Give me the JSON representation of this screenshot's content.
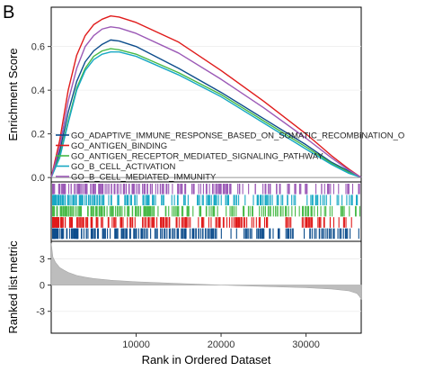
{
  "panel_label": "B",
  "colors": {
    "GO_ADAPTIVE_IMMUNE_RESPONSE_BASED_ON_SOMATIC_RECOMBINATION_O": "#0d4d8c",
    "GO_ANTIGEN_BINDING": "#e01b1b",
    "GO_ANTIGEN_RECEPTOR_MEDIATED_SIGNALING_PATHWAY": "#46b946",
    "GO_B_CELL_ACTIVATION": "#18a8c4",
    "GO_B_CELL_MEDIATED_IMMUNITY": "#9b59b6",
    "ranked_fill": "#bdbdbd"
  },
  "chart_data": [
    {
      "type": "line",
      "ylabel": "Enrichment Score",
      "xlim": [
        0,
        36500
      ],
      "ylim": [
        -0.02,
        0.78
      ],
      "yticks": [
        0.0,
        0.2,
        0.4,
        0.6
      ],
      "ytick_labels": [
        "0.0",
        "0.2",
        "0.4",
        "0.6"
      ],
      "legend_position": "bottom-left",
      "series": [
        {
          "name": "GO_ADAPTIVE_IMMUNE_RESPONSE_BASED_ON_SOMATIC_RECOMBINATION_O",
          "x": [
            0,
            1000,
            2000,
            3000,
            4000,
            5000,
            6000,
            7000,
            8000,
            10000,
            15000,
            20000,
            25000,
            30000,
            33000,
            35000,
            36500
          ],
          "y": [
            0.0,
            0.12,
            0.3,
            0.44,
            0.53,
            0.58,
            0.61,
            0.63,
            0.625,
            0.6,
            0.5,
            0.39,
            0.27,
            0.15,
            0.07,
            0.03,
            0.0
          ]
        },
        {
          "name": "GO_ANTIGEN_BINDING",
          "x": [
            0,
            1000,
            2000,
            3000,
            4000,
            5000,
            6000,
            7000,
            8000,
            10000,
            15000,
            20000,
            25000,
            30000,
            33000,
            35000,
            36500
          ],
          "y": [
            0.0,
            0.17,
            0.4,
            0.56,
            0.65,
            0.7,
            0.725,
            0.74,
            0.735,
            0.71,
            0.62,
            0.49,
            0.35,
            0.2,
            0.1,
            0.04,
            0.0
          ]
        },
        {
          "name": "GO_ANTIGEN_RECEPTOR_MEDIATED_SIGNALING_PATHWAY",
          "x": [
            0,
            1000,
            2000,
            3000,
            4000,
            5000,
            6000,
            7000,
            8000,
            10000,
            15000,
            20000,
            25000,
            30000,
            33000,
            35000,
            36500
          ],
          "y": [
            0.0,
            0.1,
            0.26,
            0.41,
            0.5,
            0.555,
            0.58,
            0.59,
            0.585,
            0.565,
            0.48,
            0.38,
            0.26,
            0.14,
            0.065,
            0.025,
            0.0
          ]
        },
        {
          "name": "GO_B_CELL_ACTIVATION",
          "x": [
            0,
            1000,
            2000,
            3000,
            4000,
            5000,
            6000,
            7000,
            8000,
            10000,
            15000,
            20000,
            25000,
            30000,
            33000,
            35000,
            36500
          ],
          "y": [
            0.0,
            0.09,
            0.25,
            0.4,
            0.49,
            0.54,
            0.565,
            0.575,
            0.575,
            0.555,
            0.47,
            0.37,
            0.25,
            0.13,
            0.06,
            0.02,
            0.0
          ]
        },
        {
          "name": "GO_B_CELL_MEDIATED_IMMUNITY",
          "x": [
            0,
            1000,
            2000,
            3000,
            4000,
            5000,
            6000,
            7000,
            8000,
            10000,
            15000,
            20000,
            25000,
            30000,
            33000,
            35000,
            36500
          ],
          "y": [
            0.0,
            0.14,
            0.35,
            0.5,
            0.6,
            0.65,
            0.68,
            0.69,
            0.685,
            0.66,
            0.57,
            0.45,
            0.32,
            0.18,
            0.09,
            0.035,
            0.0
          ]
        }
      ]
    },
    {
      "type": "table",
      "rows_order": [
        "GO_B_CELL_MEDIATED_IMMUNITY",
        "GO_B_CELL_ACTIVATION",
        "GO_ANTIGEN_RECEPTOR_MEDIATED_SIGNALING_PATHWAY",
        "GO_ANTIGEN_BINDING",
        "GO_ADAPTIVE_IMMUNE_RESPONSE_BASED_ON_SOMATIC_RECOMBINATION_O"
      ],
      "xlim": [
        0,
        36500
      ]
    },
    {
      "type": "area",
      "xlabel": "Rank in Ordered Dataset",
      "ylabel": "Ranked list metric",
      "xlim": [
        0,
        36500
      ],
      "ylim": [
        -5.5,
        5
      ],
      "yticks": [
        3,
        0,
        -3
      ],
      "ytick_labels": [
        "3",
        "0",
        "-3"
      ],
      "xticks": [
        10000,
        20000,
        30000
      ],
      "xtick_labels": [
        "10000",
        "20000",
        "30000"
      ],
      "x": [
        0,
        200,
        500,
        1000,
        1500,
        2000,
        3000,
        4000,
        5000,
        7000,
        10000,
        15000,
        20000,
        25000,
        30000,
        33000,
        35000,
        36000,
        36300,
        36500
      ],
      "y": [
        4.8,
        3.2,
        2.6,
        2.0,
        1.7,
        1.45,
        1.1,
        0.9,
        0.75,
        0.55,
        0.38,
        0.18,
        0.0,
        -0.15,
        -0.3,
        -0.45,
        -0.65,
        -0.95,
        -1.3,
        -1.6
      ]
    }
  ]
}
